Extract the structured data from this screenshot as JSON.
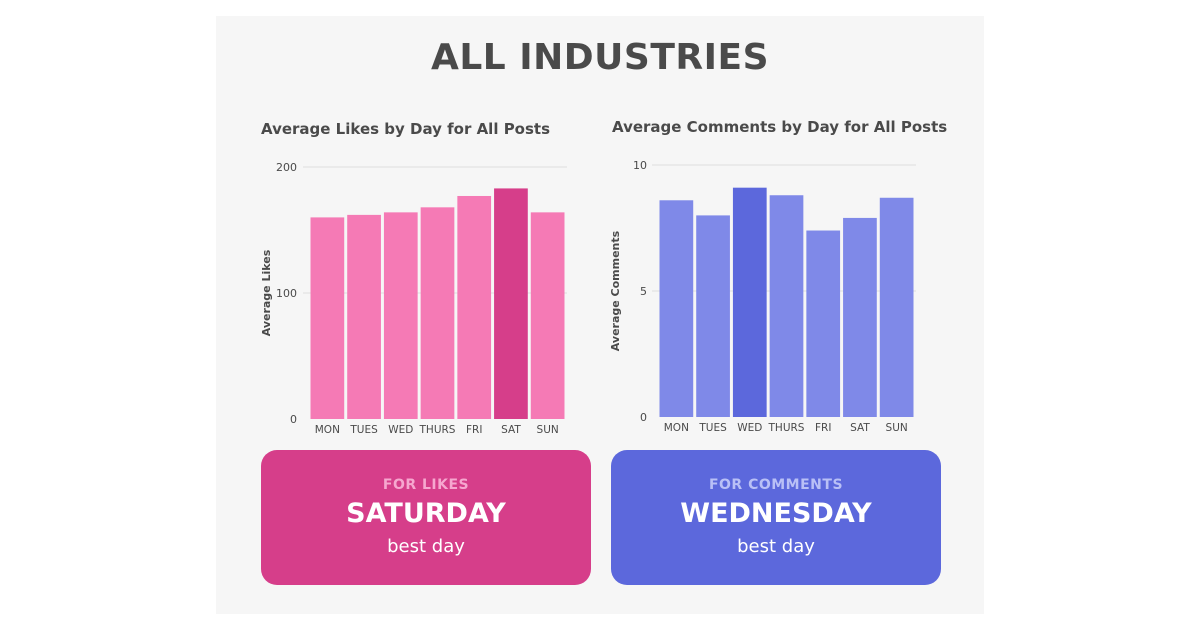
{
  "title": "ALL INDUSTRIES",
  "chart_data": [
    {
      "type": "bar",
      "title": "Average Likes by Day for All Posts",
      "xlabel": "",
      "ylabel": "Average Likes",
      "categories": [
        "MON",
        "TUES",
        "WED",
        "THURS",
        "FRI",
        "SAT",
        "SUN"
      ],
      "values": [
        160,
        162,
        164,
        168,
        177,
        183,
        164
      ],
      "highlight_index": 5,
      "ylim": [
        0,
        200
      ],
      "yticks": [
        0,
        100,
        200
      ],
      "grid": true,
      "colors": {
        "bar": "#f57ab5",
        "highlight": "#d63e8a"
      }
    },
    {
      "type": "bar",
      "title": "Average Comments by Day for All Posts",
      "xlabel": "",
      "ylabel": "Average Comments",
      "categories": [
        "MON",
        "TUES",
        "WED",
        "THURS",
        "FRI",
        "SAT",
        "SUN"
      ],
      "values": [
        8.6,
        8.0,
        9.1,
        8.8,
        7.4,
        7.9,
        8.7
      ],
      "highlight_index": 2,
      "ylim": [
        0,
        10
      ],
      "yticks": [
        0,
        5,
        10
      ],
      "grid": true,
      "colors": {
        "bar": "#7f89e8",
        "highlight": "#5c68dc"
      }
    }
  ],
  "cards": {
    "likes": {
      "label": "FOR LIKES",
      "day": "SATURDAY",
      "sub": "best day"
    },
    "comments": {
      "label": "FOR COMMENTS",
      "day": "WEDNESDAY",
      "sub": "best day"
    }
  }
}
